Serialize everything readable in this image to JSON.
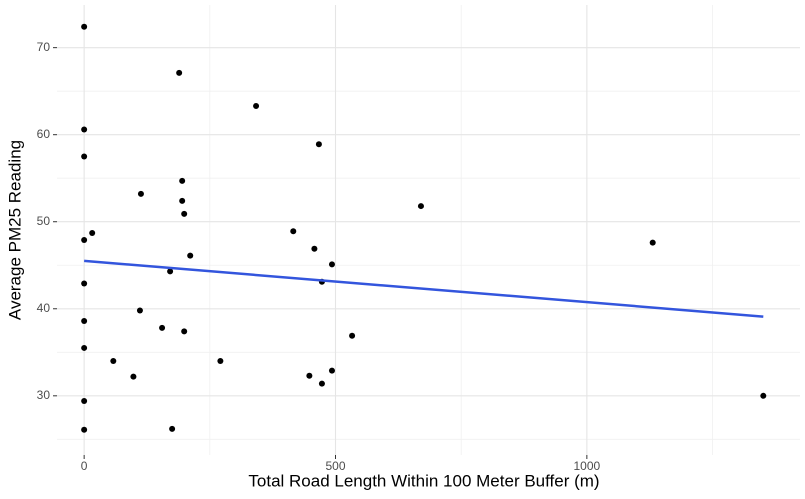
{
  "chart_data": {
    "type": "scatter",
    "x_label": "Total Road Length Within 100 Meter Buffer (m)",
    "y_label": "Average PM25 Reading",
    "x": [
      0,
      189,
      0,
      0,
      342,
      467,
      195,
      113,
      195,
      199,
      670,
      16,
      0,
      416,
      1131,
      458,
      211,
      493,
      171,
      0,
      473,
      111,
      0,
      155,
      199,
      533,
      0,
      58,
      271,
      98,
      448,
      493,
      473,
      0,
      1351,
      0,
      175
    ],
    "values": [
      72.4,
      67.1,
      60.6,
      57.5,
      63.3,
      58.9,
      54.7,
      53.2,
      52.4,
      50.9,
      51.8,
      48.7,
      47.9,
      48.9,
      47.6,
      46.9,
      46.1,
      45.1,
      44.3,
      42.9,
      43.1,
      39.8,
      38.6,
      37.8,
      37.4,
      36.9,
      35.5,
      34.0,
      34.0,
      32.2,
      32.3,
      32.9,
      31.4,
      29.4,
      30.0,
      26.1,
      26.2
    ],
    "color": "#000000",
    "fit": {
      "x": [
        0,
        1351
      ],
      "y": [
        45.5,
        39.1
      ],
      "color": "#3355dd"
    },
    "xlim": [
      -54,
      1424
    ],
    "ylim": [
      23.2,
      74.9
    ],
    "xticks": [
      0,
      500,
      1000
    ],
    "yticks": [
      30,
      40,
      50,
      60,
      70
    ],
    "x_minor_ticks": [
      250,
      750,
      1250
    ],
    "y_minor_ticks": [
      25,
      35,
      45,
      55,
      65
    ],
    "grid": true
  }
}
